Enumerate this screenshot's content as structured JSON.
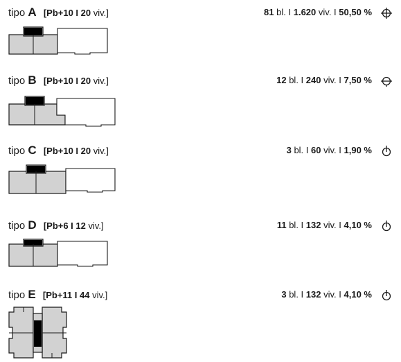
{
  "types": [
    {
      "prefix": "tipo",
      "letter": "A",
      "spec": "[Pb+10 I 20",
      "spec_unit": "viv.]",
      "stats": {
        "blocks": "81",
        "bl": "bl. I",
        "units": "1.620",
        "viv": "viv. I",
        "pct": "50,50 %"
      },
      "symbol": "crosshair-circle-icon"
    },
    {
      "prefix": "tipo",
      "letter": "B",
      "spec": "[Pb+10 I 20",
      "spec_unit": "viv.]",
      "stats": {
        "blocks": "12",
        "bl": "bl. I",
        "units": "240",
        "viv": "viv. I",
        "pct": "7,50 %"
      },
      "symbol": "horizontal-circle-icon"
    },
    {
      "prefix": "tipo",
      "letter": "C",
      "spec": "[Pb+10 I 20",
      "spec_unit": "viv.]",
      "stats": {
        "blocks": "3",
        "bl": "bl. I",
        "units": "60",
        "viv": "viv. I",
        "pct": "1,90 %"
      },
      "symbol": "vertical-tick-circle-icon"
    },
    {
      "prefix": "tipo",
      "letter": "D",
      "spec": "[Pb+6 I 12",
      "spec_unit": "viv.]",
      "stats": {
        "blocks": "11",
        "bl": "bl. I",
        "units": "132",
        "viv": "viv. I",
        "pct": "4,10 %"
      },
      "symbol": "vertical-tick-circle-icon"
    },
    {
      "prefix": "tipo",
      "letter": "E",
      "spec": "[Pb+11 I 44",
      "spec_unit": "viv.]",
      "stats": {
        "blocks": "3",
        "bl": "bl. I",
        "units": "132",
        "viv": "viv. I",
        "pct": "4,10 %"
      },
      "symbol": "vertical-tick-circle-icon"
    }
  ],
  "colors": {
    "fill": "#d2d2d2",
    "core": "#000000",
    "line": "#1a1a1a"
  }
}
